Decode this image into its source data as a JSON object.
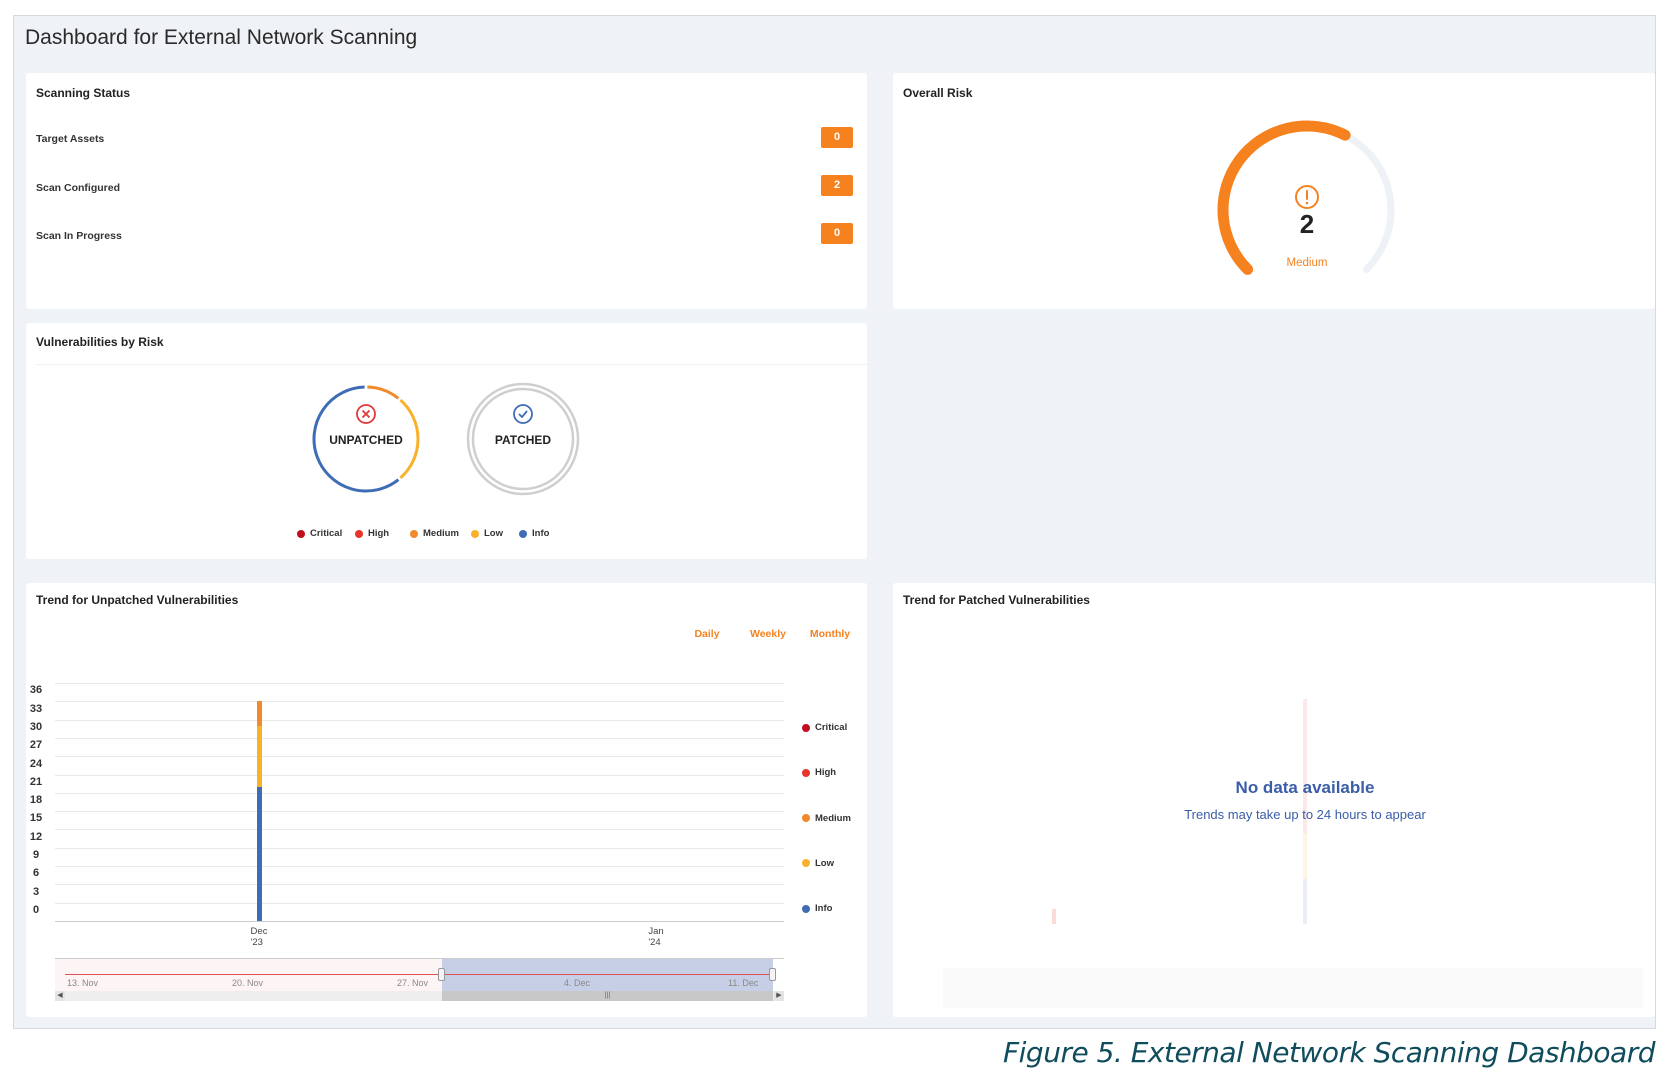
{
  "page": {
    "title": "Dashboard for External Network Scanning"
  },
  "scanning_status": {
    "title": "Scanning Status",
    "rows": [
      {
        "label": "Target Assets",
        "value": "0"
      },
      {
        "label": "Scan Configured",
        "value": "2"
      },
      {
        "label": "Scan In Progress",
        "value": "0"
      }
    ],
    "badge_color": "#f5821f"
  },
  "overall_risk": {
    "title": "Overall Risk",
    "value": "2",
    "level": "Medium",
    "gauge_fraction": 0.6,
    "icon": "alert-circle-icon",
    "color": "#f5821f"
  },
  "vulnerabilities_by_risk": {
    "title": "Vulnerabilities by Risk",
    "unpatched_label": "UNPATCHED",
    "patched_label": "PATCHED",
    "unpatched_icon": "x-circle-icon",
    "patched_icon": "check-circle-icon",
    "legend": [
      {
        "label": "Critical",
        "color": "#c0101f"
      },
      {
        "label": "High",
        "color": "#e8352b"
      },
      {
        "label": "Medium",
        "color": "#f08a2c"
      },
      {
        "label": "Low",
        "color": "#f9b12a"
      },
      {
        "label": "Info",
        "color": "#3f6db5"
      }
    ]
  },
  "trend_unpatched": {
    "title": "Trend for Unpatched Vulnerabilities",
    "periods": [
      "Daily",
      "Weekly",
      "Monthly"
    ],
    "navigator_labels": [
      "13. Nov",
      "20. Nov",
      "27. Nov",
      "4. Dec",
      "11. Dec"
    ]
  },
  "trend_patched": {
    "title": "Trend for Patched Vulnerabilities",
    "empty_title": "No data available",
    "empty_message": "Trends may take up to 24 hours to appear"
  },
  "caption": "Figure 5. External Network Scanning Dashboard",
  "chart_data": {
    "type": "bar",
    "stacked": true,
    "categories": [
      "Dec '23",
      "Jan '24"
    ],
    "series": [
      {
        "name": "Critical",
        "color": "#c0101f",
        "values": [
          0,
          0
        ]
      },
      {
        "name": "High",
        "color": "#e8352b",
        "values": [
          0,
          0
        ]
      },
      {
        "name": "Medium",
        "color": "#f08a2c",
        "values": [
          4,
          0
        ]
      },
      {
        "name": "Low",
        "color": "#f9b12a",
        "values": [
          10,
          0
        ]
      },
      {
        "name": "Info",
        "color": "#3f6db5",
        "values": [
          22,
          0
        ]
      }
    ],
    "yticks": [
      0,
      3,
      6,
      9,
      12,
      15,
      18,
      21,
      24,
      27,
      30,
      33,
      36
    ],
    "ylim": [
      0,
      39
    ],
    "grid": true,
    "legend": "right"
  }
}
